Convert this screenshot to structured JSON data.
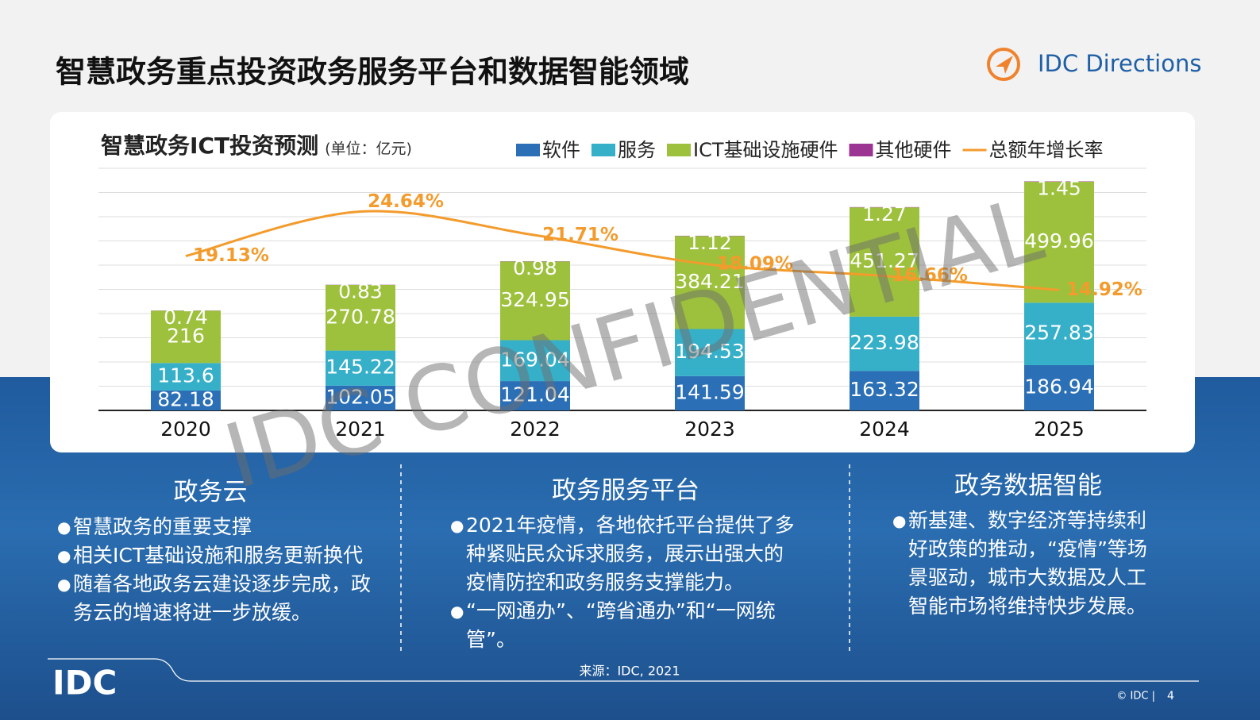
{
  "header": {
    "title": "智慧政务重点投资政务服务平台和数据智能领域",
    "logo": "IDC Directions"
  },
  "chart_data": {
    "type": "bar",
    "stacked": true,
    "title": "智慧政务ICT投资预测",
    "unit": "(单位：亿元)",
    "categories": [
      "2020",
      "2021",
      "2022",
      "2023",
      "2024",
      "2025"
    ],
    "series": [
      {
        "name": "软件",
        "color": "#2b6fb6",
        "values": [
          82.18,
          102.05,
          121.04,
          141.59,
          163.32,
          186.94
        ]
      },
      {
        "name": "服务",
        "color": "#36afc8",
        "values": [
          113.6,
          145.22,
          169.04,
          194.53,
          223.98,
          257.83
        ]
      },
      {
        "name": "ICT基础设施硬件",
        "color": "#9dc13c",
        "values": [
          216,
          270.78,
          324.95,
          384.21,
          451.27,
          499.96
        ]
      },
      {
        "name": "其他硬件",
        "color": "#9c3591",
        "values": [
          0.74,
          0.83,
          0.98,
          1.12,
          1.27,
          1.45
        ]
      },
      {
        "name": "总额年增长率",
        "color": "#f39b2c",
        "type": "line",
        "axis": "y2",
        "values": [
          19.13,
          24.64,
          21.71,
          18.09,
          16.66,
          14.92
        ],
        "value_labels": [
          "19.13%",
          "24.64%",
          "21.71%",
          "18.09%",
          "16.66%",
          "14.92%"
        ]
      }
    ],
    "ylim": [
      0,
      1000
    ],
    "yticks": [
      0,
      100,
      200,
      300,
      400,
      500,
      600,
      700,
      800,
      900,
      1000
    ],
    "y2lim": [
      0,
      30
    ],
    "grid": true,
    "watermark": "IDC CONFIDENTIAL"
  },
  "columns": [
    {
      "heading": "政务云",
      "bullets": [
        "智慧政务的重要支撑",
        "相关ICT基础设施和服务更新换代",
        "随着各地政务云建设逐步完成，政务云的增速将进一步放缓。"
      ]
    },
    {
      "heading": "政务服务平台",
      "bullets": [
        "2021年疫情，各地依托平台提供了多种紧贴民众诉求服务，展示出强大的疫情防控和政务服务支撑能力。",
        "“一网通办”、“跨省通办”和“一网统管”。"
      ]
    },
    {
      "heading": "政务数据智能",
      "bullets": [
        "新基建、数字经济等持续利好政策的推动，“疫情”等场景驱动，城市大数据及人工智能市场将维持快步发展。"
      ]
    }
  ],
  "source": "来源：IDC, 2021",
  "footer": {
    "logo": "IDC",
    "copyright": "© IDC |",
    "page": "4"
  }
}
